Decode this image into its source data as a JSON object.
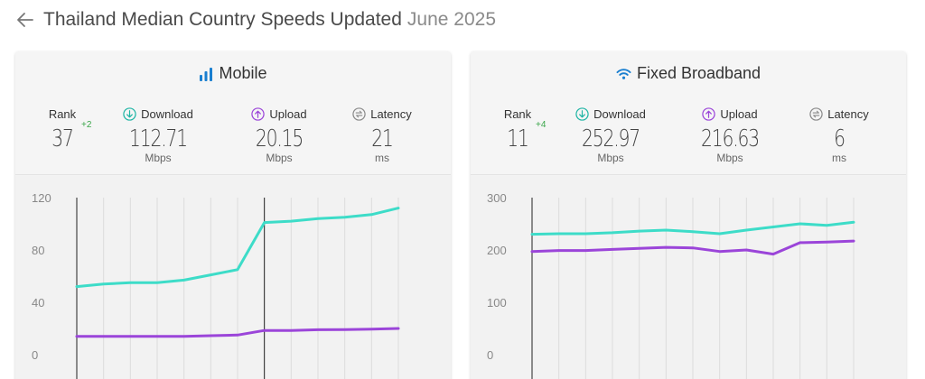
{
  "header": {
    "title": "Thailand Median Country Speeds Updated",
    "date": "June 2025"
  },
  "colors": {
    "download": "#3ddcc8",
    "upload": "#9b45d9",
    "download_icon": "#1fb5a5",
    "upload_icon": "#9b45d9",
    "latency_icon": "#8a8a8a",
    "mobile_icon": "#1a7fd0",
    "rank_change": "#3aa64a"
  },
  "mobile": {
    "title": "Mobile",
    "icon": "signal-bars-icon",
    "rank_label": "Rank",
    "rank": "37",
    "rank_change": "+2",
    "download_label": "Download",
    "download": "112.71",
    "download_unit": "Mbps",
    "upload_label": "Upload",
    "upload": "20.15",
    "upload_unit": "Mbps",
    "latency_label": "Latency",
    "latency": "21",
    "latency_unit": "ms"
  },
  "fixed": {
    "title": "Fixed Broadband",
    "icon": "wifi-icon",
    "rank_label": "Rank",
    "rank": "11",
    "rank_change": "+4",
    "download_label": "Download",
    "download": "252.97",
    "download_unit": "Mbps",
    "upload_label": "Upload",
    "upload": "216.63",
    "upload_unit": "Mbps",
    "latency_label": "Latency",
    "latency": "6",
    "latency_unit": "ms"
  },
  "chart_data": [
    {
      "type": "line",
      "chart": "mobile",
      "ylim": [
        0,
        120
      ],
      "yticks": [
        0,
        40,
        80,
        120
      ],
      "x": [
        1,
        2,
        3,
        4,
        5,
        6,
        7,
        8,
        9,
        10,
        11,
        12,
        13
      ],
      "markers_at": [
        1,
        8
      ],
      "series": [
        {
          "values": [
            52,
            54,
            55,
            55,
            57,
            61,
            65,
            101,
            102,
            104,
            105,
            107,
            112
          ]
        },
        {
          "values": [
            14,
            14,
            14,
            14,
            14,
            14.5,
            15,
            18.5,
            18.5,
            19,
            19.2,
            19.5,
            20
          ]
        }
      ],
      "grid": true
    },
    {
      "type": "line",
      "chart": "fixed",
      "ylim": [
        0,
        300
      ],
      "yticks": [
        0,
        100,
        200,
        300
      ],
      "x": [
        1,
        2,
        3,
        4,
        5,
        6,
        7,
        8,
        9,
        10,
        11,
        12,
        13
      ],
      "markers_at": [
        1
      ],
      "series": [
        {
          "values": [
            230,
            231,
            231,
            233,
            236,
            238,
            235,
            231,
            238,
            244,
            250,
            247,
            253
          ]
        },
        {
          "values": [
            197,
            199,
            199,
            201,
            203,
            205,
            204,
            197,
            200,
            192,
            214,
            215,
            217
          ]
        }
      ],
      "grid": true
    }
  ]
}
